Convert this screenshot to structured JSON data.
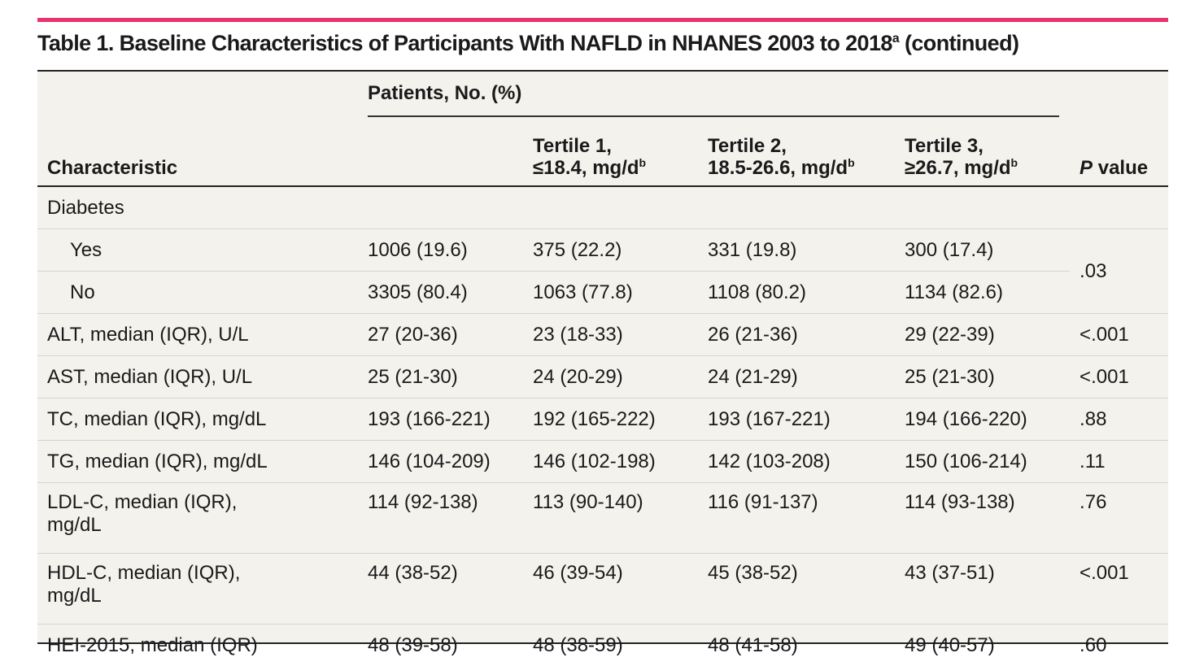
{
  "title": {
    "text": "Table 1. Baseline Characteristics of Participants With NAFLD in NHANES 2003 to 2018",
    "sup": "a",
    "suffix": " (continued)"
  },
  "header": {
    "characteristic": "Characteristic",
    "group": "Patients, No. (%)",
    "col_total": "",
    "tertile1_line1": "Tertile 1,",
    "tertile1_line2": "≤18.4, mg/d",
    "tertile2_line1": "Tertile 2,",
    "tertile2_line2": "18.5-26.6, mg/d",
    "tertile3_line1": "Tertile 3,",
    "tertile3_line2": "≥26.7, mg/d",
    "footnote_mark": "b",
    "pvalue_italic": "P",
    "pvalue_rest": " value"
  },
  "rows": {
    "diabetes_label": "Diabetes",
    "diabetes_yes": {
      "label": "Yes",
      "total": "1006 (19.6)",
      "t1": "375 (22.2)",
      "t2": "331 (19.8)",
      "t3": "300 (17.4)"
    },
    "diabetes_no": {
      "label": "No",
      "total": "3305 (80.4)",
      "t1": "1063 (77.8)",
      "t2": "1108 (80.2)",
      "t3": "1134 (82.6)"
    },
    "diabetes_p": ".03",
    "alt": {
      "label": "ALT, median (IQR), U/L",
      "total": "27 (20-36)",
      "t1": "23 (18-33)",
      "t2": "26 (21-36)",
      "t3": "29 (22-39)",
      "p": "<.001"
    },
    "ast": {
      "label": "AST, median (IQR), U/L",
      "total": "25 (21-30)",
      "t1": "24 (20-29)",
      "t2": "24 (21-29)",
      "t3": "25 (21-30)",
      "p": "<.001"
    },
    "tc": {
      "label": "TC, median (IQR), mg/dL",
      "total": "193 (166-221)",
      "t1": "192 (165-222)",
      "t2": "193 (167-221)",
      "t3": "194 (166-220)",
      "p": ".88"
    },
    "tg": {
      "label": "TG, median (IQR), mg/dL",
      "total": "146 (104-209)",
      "t1": "146 (102-198)",
      "t2": "142 (103-208)",
      "t3": "150 (106-214)",
      "p": ".11"
    },
    "ldl": {
      "label_line1": "LDL-C, median (IQR),",
      "label_line2": "mg/dL",
      "total": "114 (92-138)",
      "t1": "113 (90-140)",
      "t2": "116 (91-137)",
      "t3": "114 (93-138)",
      "p": ".76"
    },
    "hdl": {
      "label_line1": "HDL-C, median (IQR),",
      "label_line2": "mg/dL",
      "total": "44 (38-52)",
      "t1": "46 (39-54)",
      "t2": "45 (38-52)",
      "t3": "43 (37-51)",
      "p": "<.001"
    },
    "hei": {
      "label": "HEI-2015, median (IQR)",
      "total": "48 (39-58)",
      "t1": "48 (38-59)",
      "t2": "48 (41-58)",
      "t3": "49 (40-57)",
      "p": ".60"
    }
  }
}
